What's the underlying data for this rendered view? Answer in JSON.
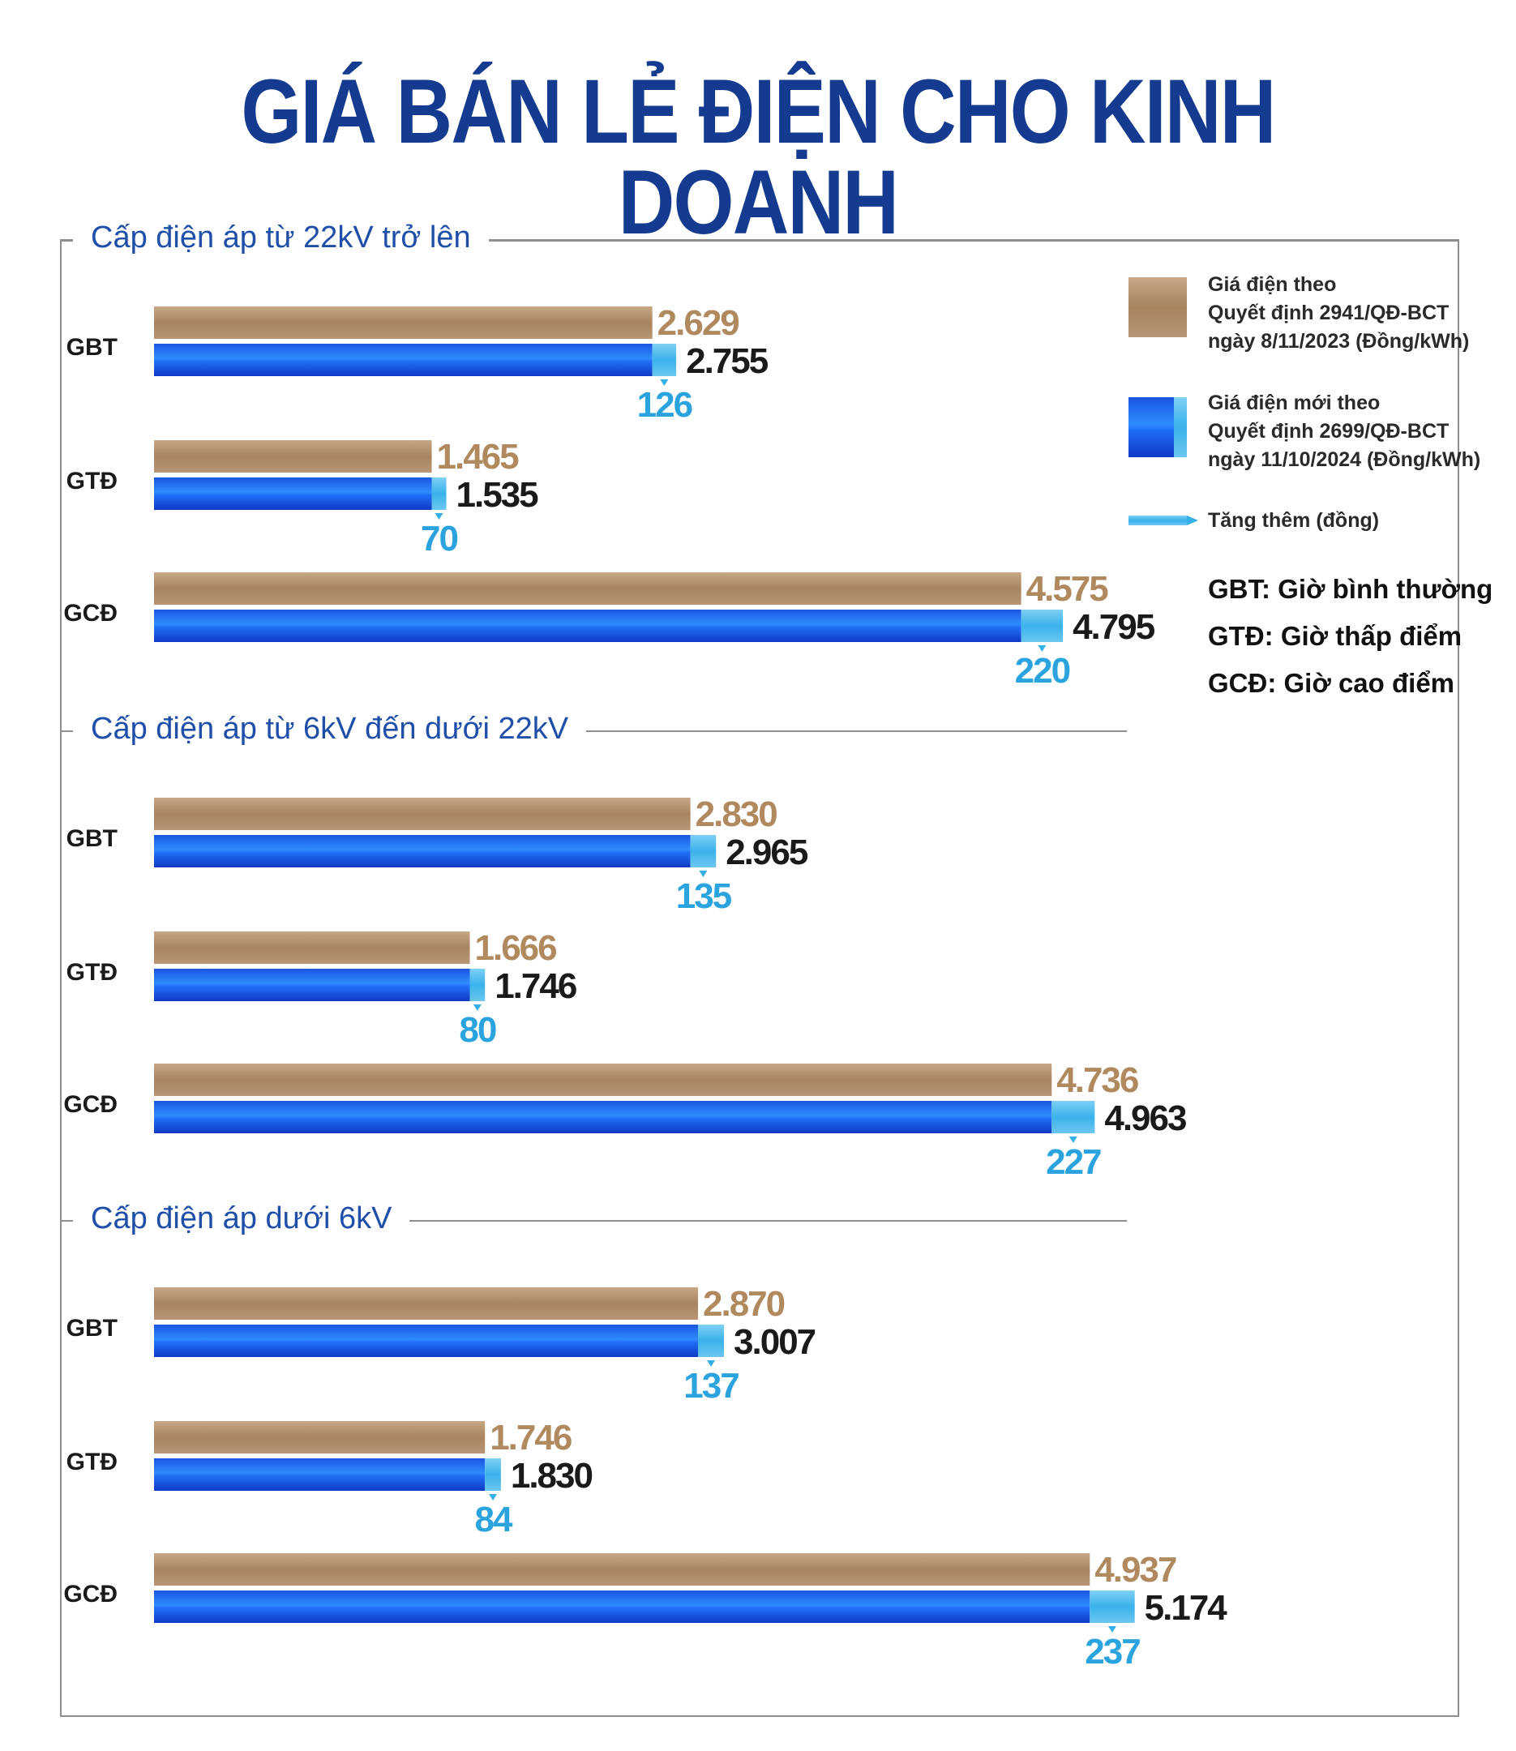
{
  "title": "GIÁ BÁN LẺ ĐIỆN CHO KINH DOANH",
  "legend": {
    "old_line1": "Giá điện theo",
    "old_line2": "Quyết định 2941/QĐ-BCT",
    "old_line3": "ngày 8/11/2023 (Đồng/kWh)",
    "new_line1": "Giá điện mới theo",
    "new_line2": "Quyết định 2699/QĐ-BCT",
    "new_line3": "ngày 11/10/2024 (Đồng/kWh)",
    "increase": "Tăng thêm (đồng)"
  },
  "abbreviations": {
    "gbt": "GBT: Giờ bình thường",
    "gtd": "GTĐ: Giờ thấp điểm",
    "gcd": "GCĐ: Giờ cao điểm"
  },
  "colors": {
    "title": "#143b8f",
    "section_title": "#1f4fa8",
    "old_bar": "#b0906e",
    "new_bar": "#1f5fe6",
    "increase": "#35b0e6",
    "old_label": "#b08a5e",
    "new_label": "#1a1a1a",
    "increase_label": "#2aa3de"
  },
  "chart_data": {
    "type": "bar",
    "orientation": "horizontal",
    "categories": [
      "GBT",
      "GTĐ",
      "GCĐ"
    ],
    "groups": [
      {
        "name": "Cấp điện áp từ 22kV trở lên",
        "old": [
          "2.629",
          "1.465",
          "4.575"
        ],
        "new": [
          "2.755",
          "1.535",
          "4.795"
        ],
        "increase": [
          "126",
          "70",
          "220"
        ],
        "old_values": [
          2629,
          1465,
          4575
        ],
        "new_values": [
          2755,
          1535,
          4795
        ],
        "increase_values": [
          126,
          70,
          220
        ]
      },
      {
        "name": "Cấp điện áp từ 6kV đến dưới 22kV",
        "old": [
          "2.830",
          "1.666",
          "4.736"
        ],
        "new": [
          "2.965",
          "1.746",
          "4.963"
        ],
        "increase": [
          "135",
          "80",
          "227"
        ],
        "old_values": [
          2830,
          1666,
          4736
        ],
        "new_values": [
          2965,
          1746,
          4963
        ],
        "increase_values": [
          135,
          80,
          227
        ]
      },
      {
        "name": "Cấp điện áp dưới 6kV",
        "old": [
          "2.870",
          "1.746",
          "4.937"
        ],
        "new": [
          "3.007",
          "1.830",
          "5.174"
        ],
        "increase": [
          "137",
          "84",
          "237"
        ],
        "old_values": [
          2870,
          1746,
          4937
        ],
        "new_values": [
          3007,
          1830,
          5174
        ],
        "increase_values": [
          137,
          84,
          237
        ]
      }
    ]
  }
}
